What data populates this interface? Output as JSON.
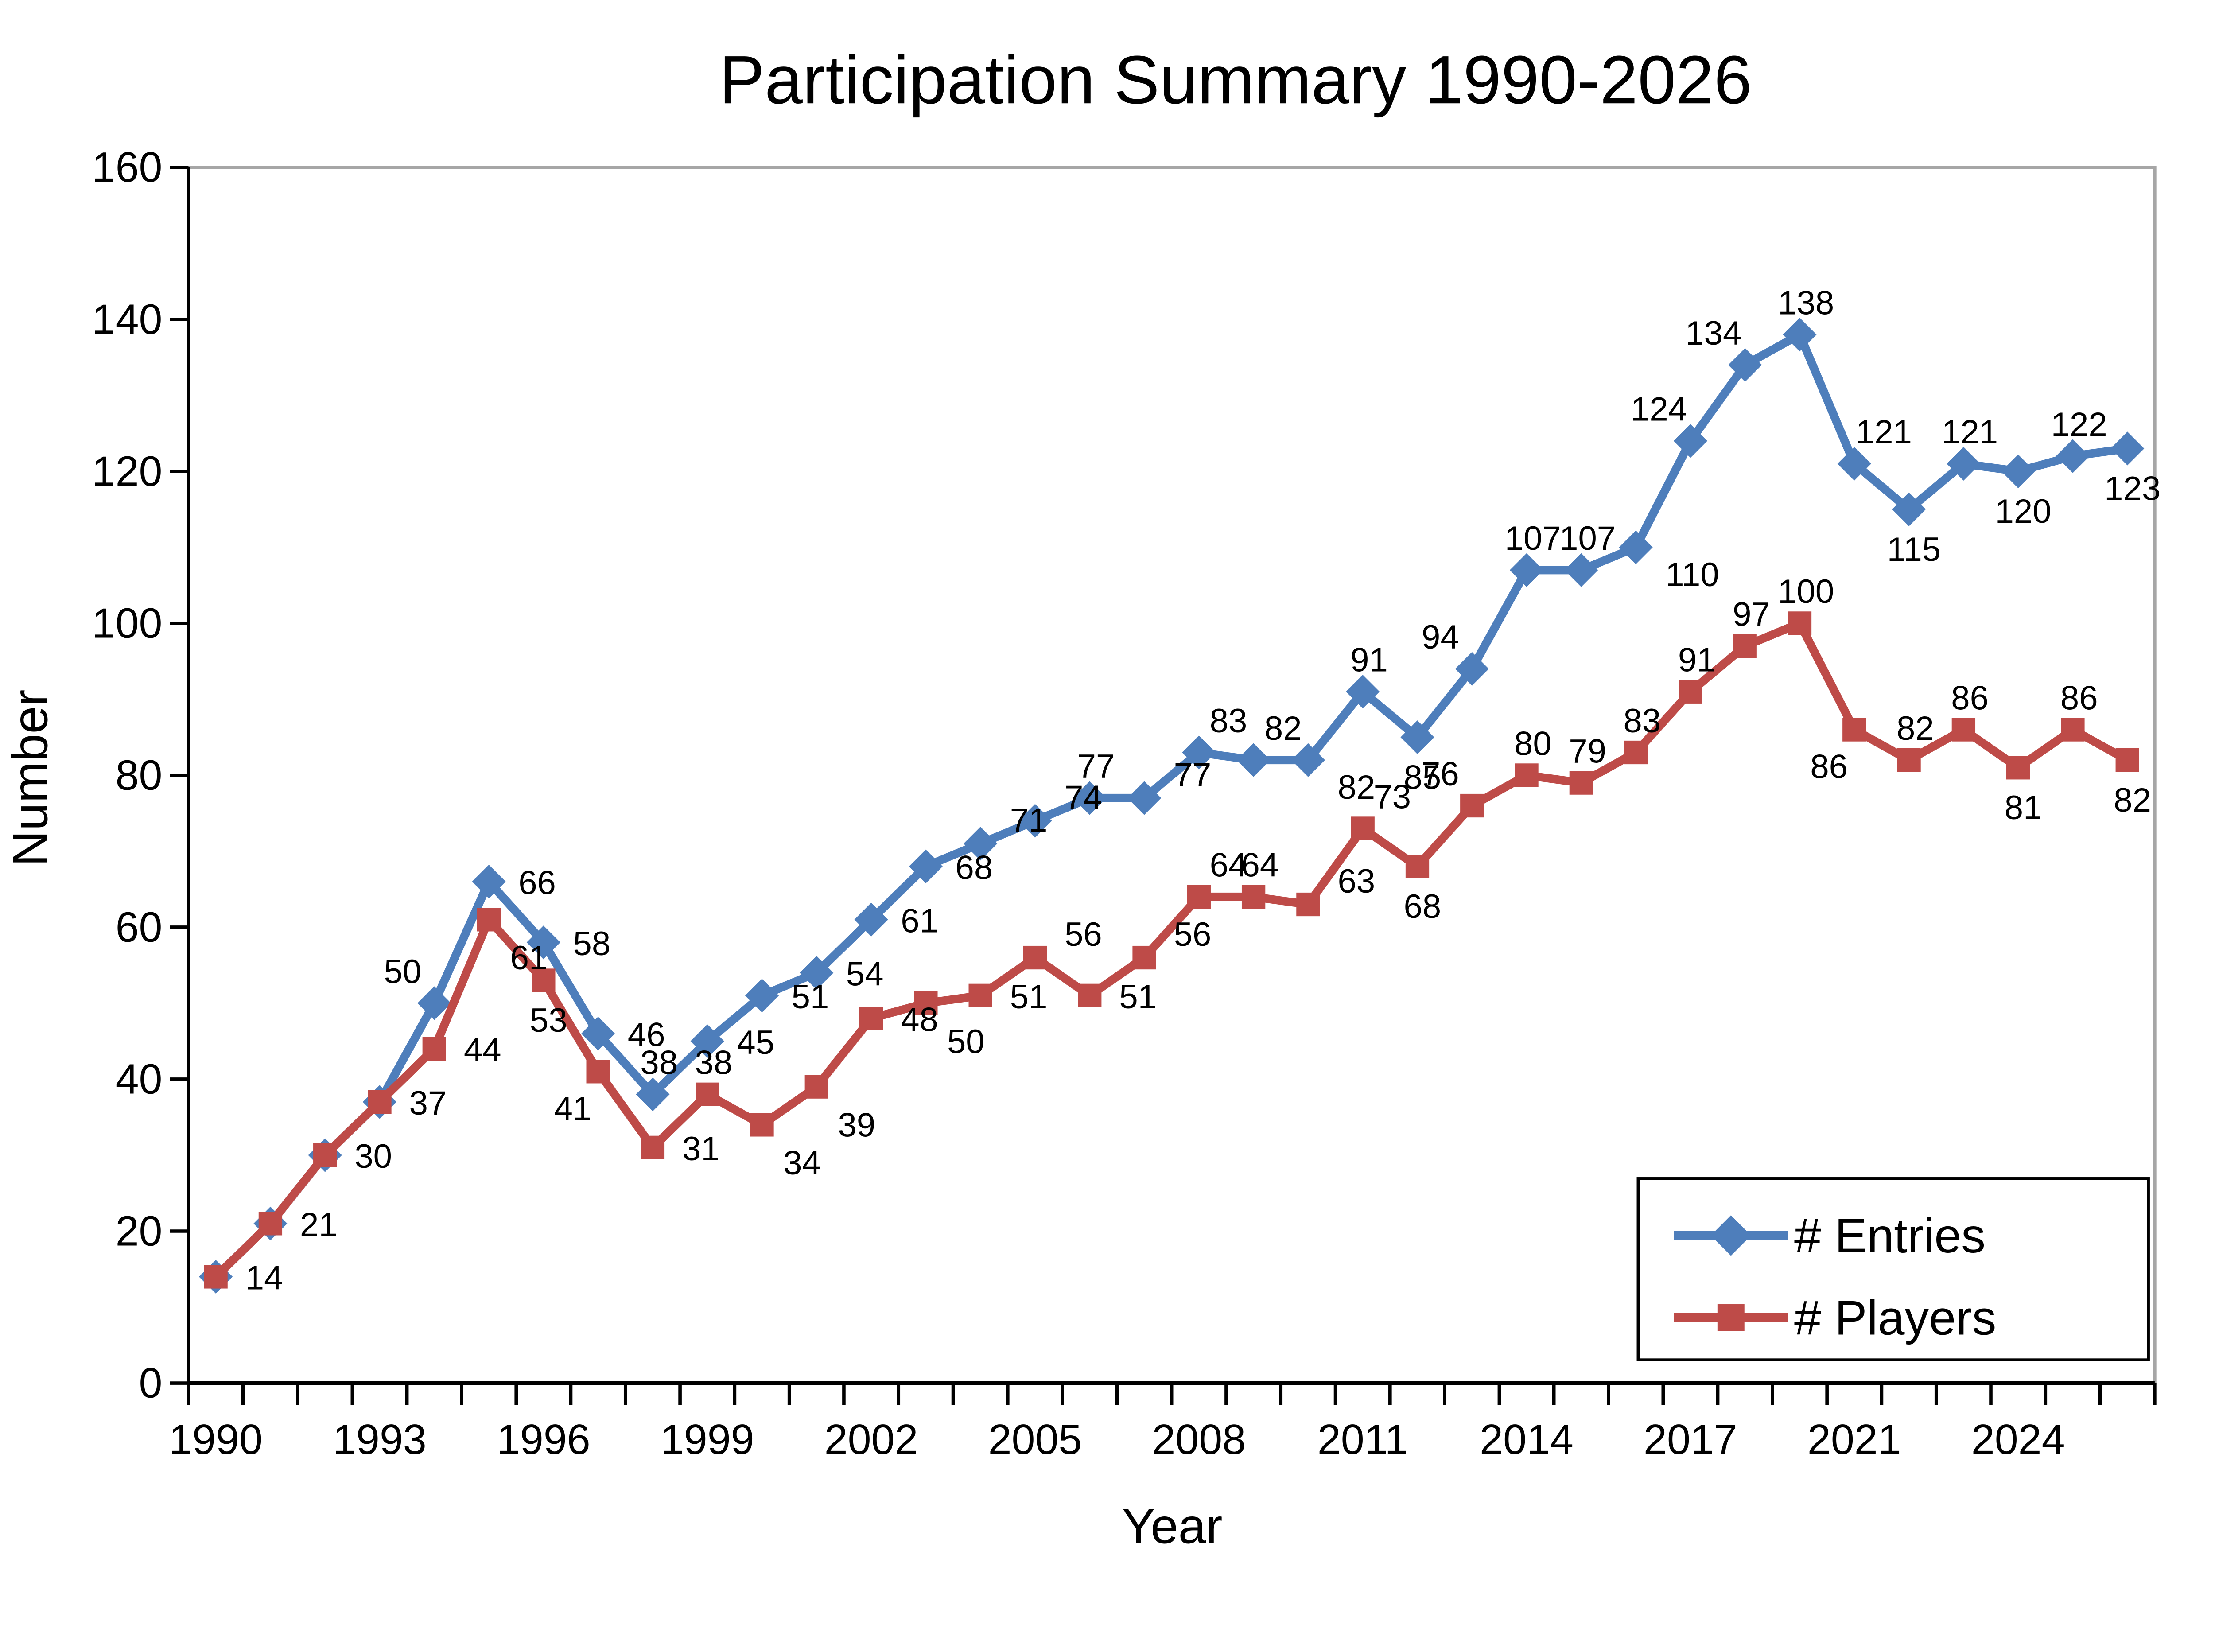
{
  "chart_data": {
    "type": "line",
    "title": "Participation Summary 1990-2026",
    "xlabel": "Year",
    "ylabel": "Number",
    "ylim": [
      0,
      160
    ],
    "ytick_step": 20,
    "grid": "off",
    "legend_position": "bottom-right",
    "plot_border_color": "#A6A6A6",
    "axis_color": "#000000",
    "y_tick_labels": [
      "0",
      "20",
      "40",
      "60",
      "80",
      "100",
      "120",
      "140",
      "160"
    ],
    "x_tick_labels": [
      "1990",
      "1993",
      "1996",
      "1999",
      "2002",
      "2005",
      "2008",
      "2011",
      "2014",
      "2017",
      "2021",
      "2024"
    ],
    "x_labeled_indices": [
      0,
      3,
      6,
      9,
      12,
      15,
      18,
      21,
      24,
      27,
      30,
      33
    ],
    "categories": [
      "1990",
      "1991",
      "1992",
      "1993",
      "1994",
      "1995",
      "1996",
      "1997",
      "1998",
      "1999",
      "2000",
      "2001",
      "2002",
      "2003",
      "2004",
      "2005",
      "2006",
      "2007",
      "2008",
      "2009",
      "2010",
      "2011",
      "2012",
      "2013",
      "2014",
      "2015",
      "2016",
      "2017",
      "2018",
      "2019",
      "2021",
      "2022",
      "2023",
      "2024",
      "2025",
      "2026"
    ],
    "series": [
      {
        "name": "# Entries",
        "color": "#4E7EBB",
        "marker": "diamond",
        "values": [
          14,
          21,
          30,
          37,
          50,
          66,
          58,
          46,
          38,
          45,
          51,
          54,
          61,
          68,
          71,
          74,
          77,
          77,
          83,
          82,
          82,
          91,
          85,
          94,
          107,
          107,
          110,
          124,
          134,
          138,
          121,
          115,
          121,
          120,
          122,
          123
        ],
        "labels": [
          null,
          null,
          null,
          null,
          "50",
          "66",
          "58",
          "46",
          "38",
          "45",
          "51",
          "54",
          "61",
          "68",
          "71",
          "74",
          "77",
          "77",
          "83",
          "82",
          "82",
          "91",
          "85",
          "94",
          "107",
          "107",
          "110",
          "124",
          "134",
          "138",
          "121",
          "115",
          "121",
          "120",
          "122",
          "123"
        ]
      },
      {
        "name": "# Players",
        "color": "#BE4B48",
        "marker": "square",
        "values": [
          14,
          21,
          30,
          37,
          44,
          61,
          53,
          41,
          31,
          38,
          34,
          39,
          48,
          50,
          51,
          56,
          51,
          56,
          64,
          64,
          63,
          73,
          68,
          76,
          80,
          79,
          83,
          91,
          97,
          100,
          86,
          82,
          86,
          81,
          86,
          82
        ],
        "labels": [
          "14",
          "21",
          "30",
          "37",
          "44",
          "61",
          "53",
          "41",
          "31",
          "38",
          "34",
          "39",
          "48",
          "50",
          "51",
          "56",
          "51",
          "56",
          "64",
          "64",
          "63",
          "73",
          "68",
          "76",
          "80",
          "79",
          "83",
          "91",
          "97",
          "100",
          "86",
          "82",
          "86",
          "81",
          "86",
          "82"
        ]
      }
    ]
  }
}
